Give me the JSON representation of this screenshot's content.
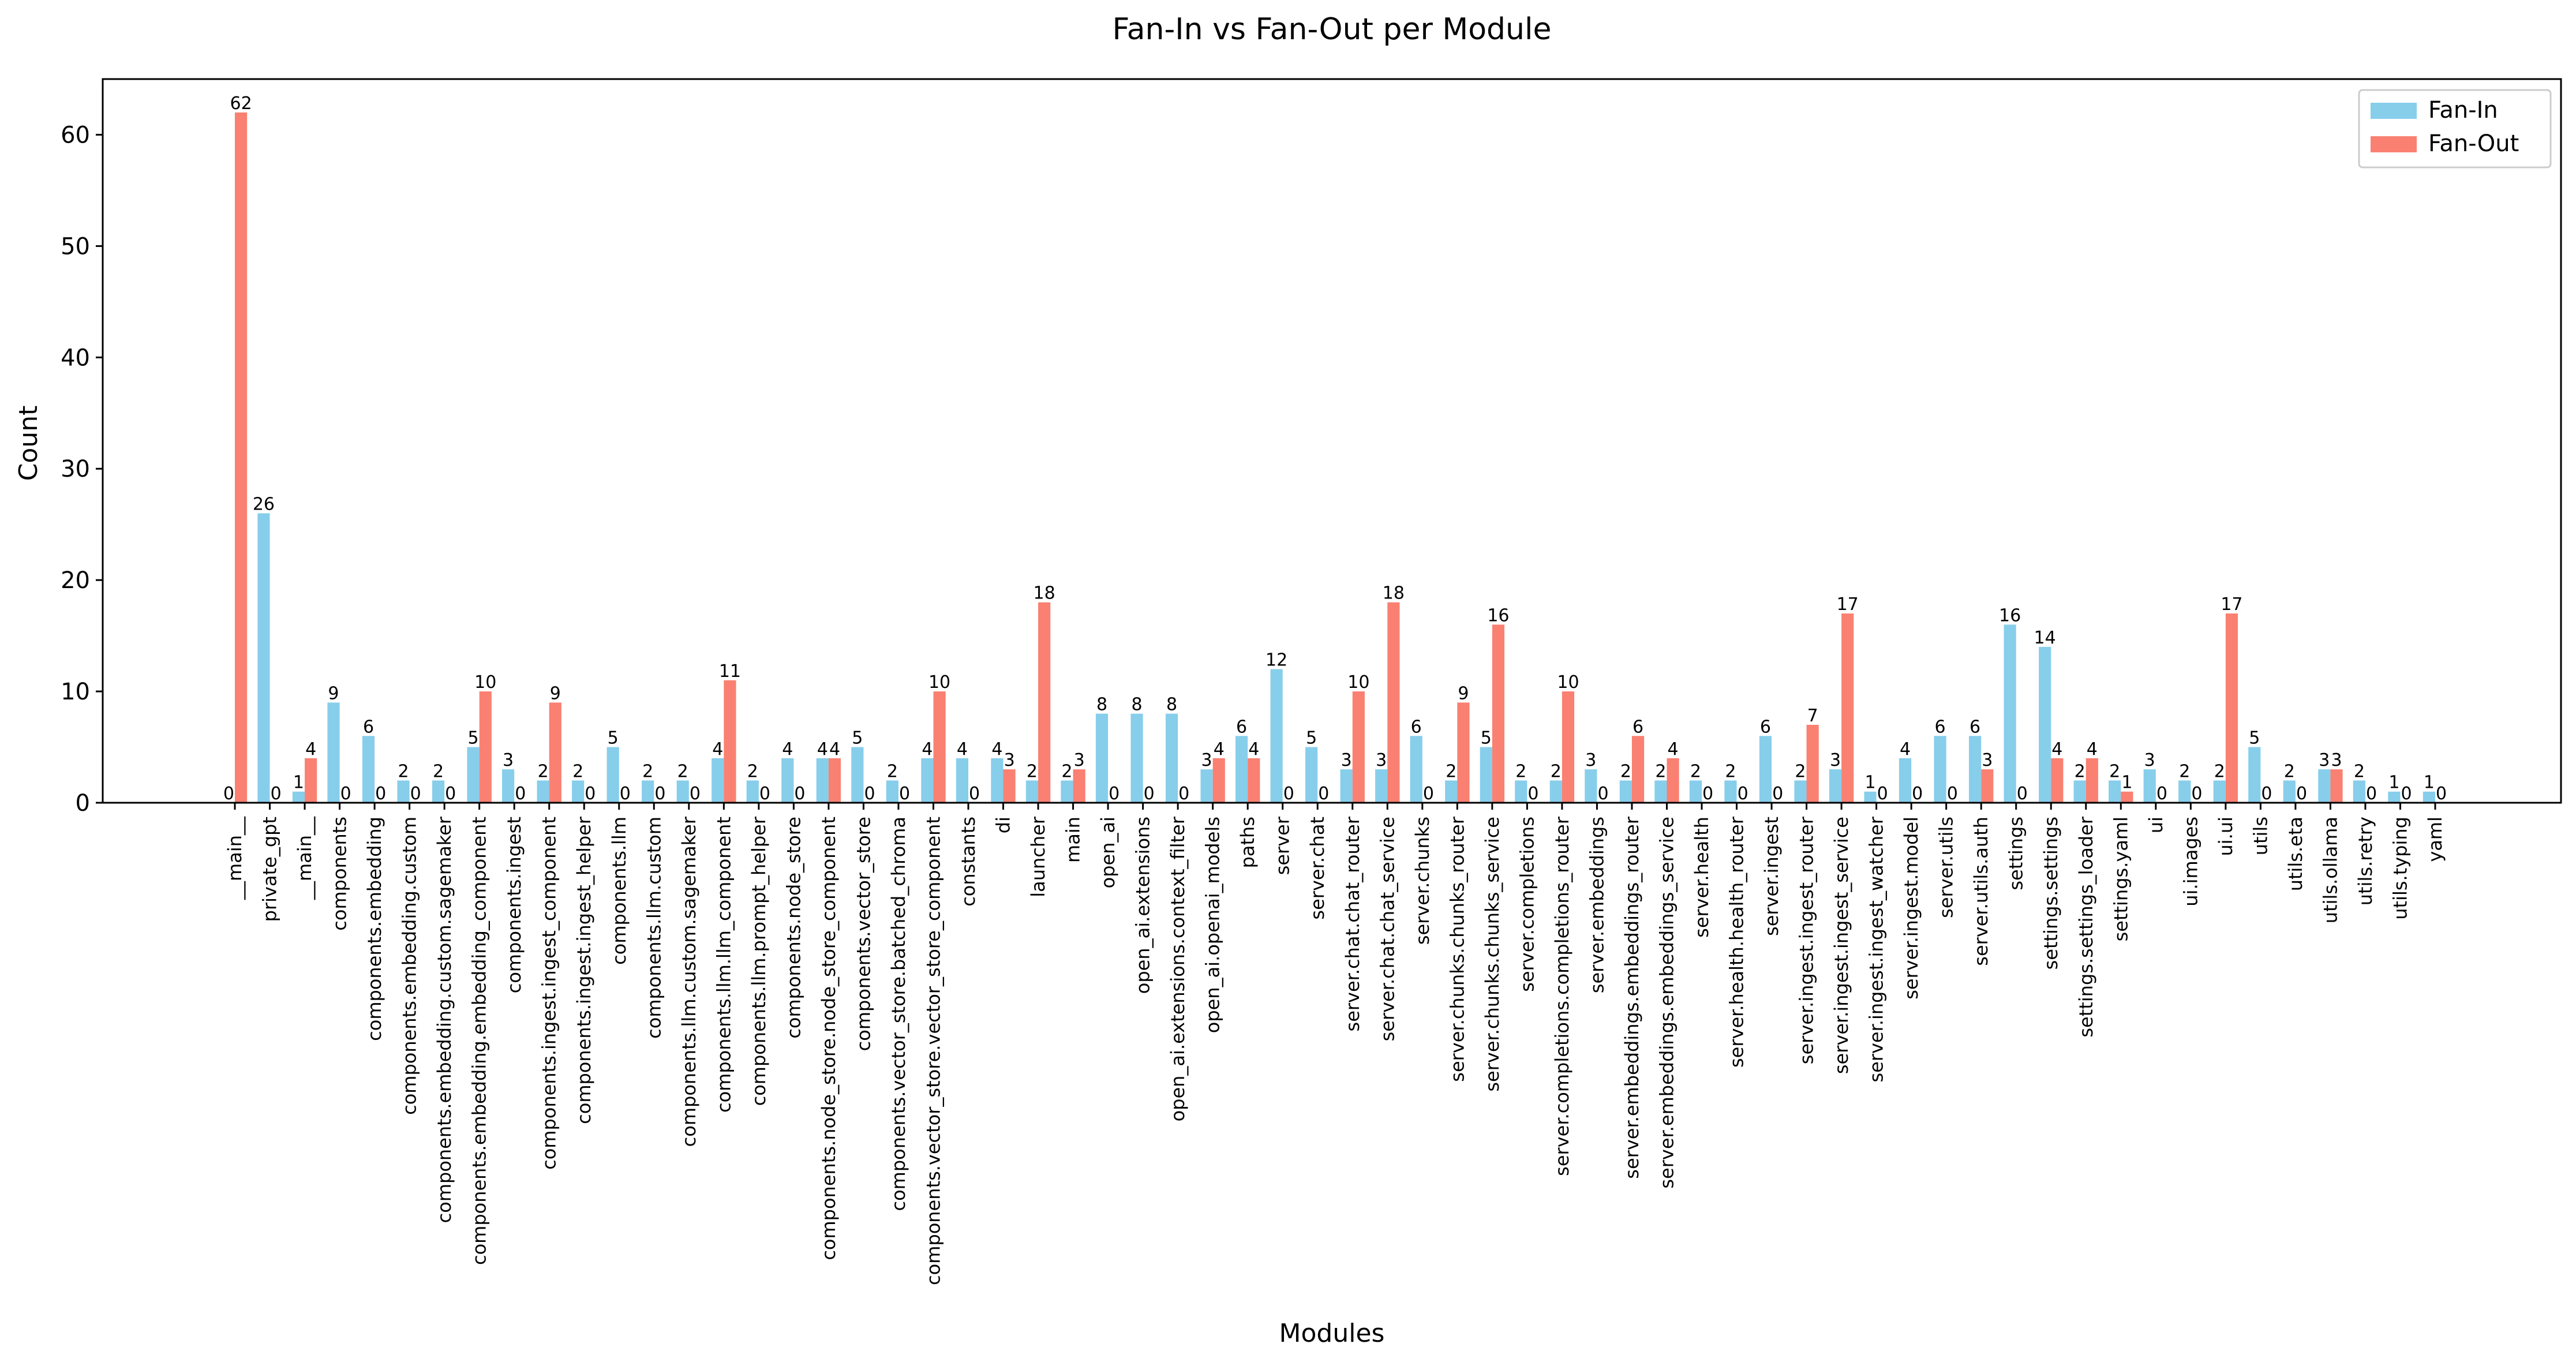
{
  "chart_data": {
    "type": "bar",
    "title": "Fan-In vs Fan-Out per Module",
    "xlabel": "Modules",
    "ylabel": "Count",
    "ylim": [
      0,
      65
    ],
    "yticks": [
      0,
      10,
      20,
      30,
      40,
      50,
      60
    ],
    "grid": false,
    "legend_position": "top-right",
    "colors": {
      "Fan-In": "#87ceeb",
      "Fan-Out": "#fa8072"
    },
    "categories": [
      "__main__",
      "private_gpt",
      "__main__",
      "components",
      "components.embedding",
      "components.embedding.custom",
      "components.embedding.custom.sagemaker",
      "components.embedding.embedding_component",
      "components.ingest",
      "components.ingest.ingest_component",
      "components.ingest.ingest_helper",
      "components.llm",
      "components.llm.custom",
      "components.llm.custom.sagemaker",
      "components.llm.llm_component",
      "components.llm.prompt_helper",
      "components.node_store",
      "components.node_store.node_store_component",
      "components.vector_store",
      "components.vector_store.batched_chroma",
      "components.vector_store.vector_store_component",
      "constants",
      "di",
      "launcher",
      "main",
      "open_ai",
      "open_ai.extensions",
      "open_ai.extensions.context_filter",
      "open_ai.openai_models",
      "paths",
      "server",
      "server.chat",
      "server.chat.chat_router",
      "server.chat.chat_service",
      "server.chunks",
      "server.chunks.chunks_router",
      "server.chunks.chunks_service",
      "server.completions",
      "server.completions.completions_router",
      "server.embeddings",
      "server.embeddings.embeddings_router",
      "server.embeddings.embeddings_service",
      "server.health",
      "server.health.health_router",
      "server.ingest",
      "server.ingest.ingest_router",
      "server.ingest.ingest_service",
      "server.ingest.ingest_watcher",
      "server.ingest.model",
      "server.utils",
      "server.utils.auth",
      "settings",
      "settings.settings",
      "settings.settings_loader",
      "settings.yaml",
      "ui",
      "ui.images",
      "ui.ui",
      "utils",
      "utils.eta",
      "utils.ollama",
      "utils.retry",
      "utils.typing",
      "yaml"
    ],
    "series": [
      {
        "name": "Fan-In",
        "values": [
          0,
          26,
          1,
          9,
          6,
          2,
          2,
          5,
          3,
          2,
          2,
          5,
          2,
          2,
          4,
          2,
          4,
          4,
          5,
          2,
          4,
          4,
          4,
          2,
          2,
          8,
          8,
          8,
          3,
          6,
          12,
          5,
          3,
          3,
          6,
          2,
          5,
          2,
          2,
          3,
          2,
          2,
          2,
          2,
          6,
          2,
          3,
          1,
          4,
          6,
          6,
          16,
          14,
          2,
          2,
          3,
          2,
          2,
          5,
          2,
          3,
          2,
          1,
          1
        ]
      },
      {
        "name": "Fan-Out",
        "values": [
          62,
          0,
          4,
          0,
          0,
          0,
          0,
          10,
          0,
          9,
          0,
          0,
          0,
          0,
          11,
          0,
          0,
          4,
          0,
          0,
          10,
          0,
          3,
          18,
          3,
          0,
          0,
          0,
          4,
          4,
          0,
          0,
          10,
          18,
          0,
          9,
          16,
          0,
          10,
          0,
          6,
          4,
          0,
          0,
          0,
          7,
          17,
          0,
          0,
          0,
          3,
          0,
          4,
          4,
          1,
          0,
          0,
          17,
          0,
          0,
          3,
          0,
          0,
          0
        ]
      }
    ]
  }
}
